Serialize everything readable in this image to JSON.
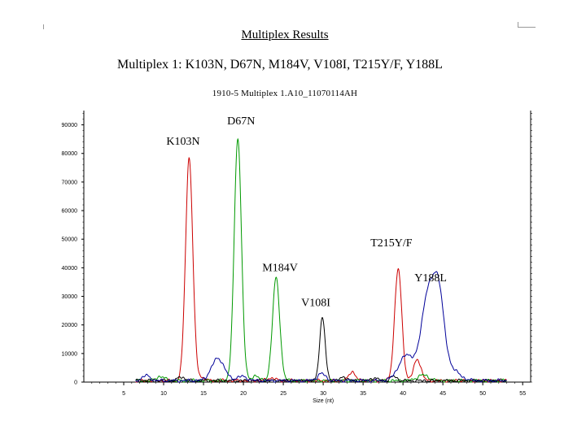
{
  "header": {
    "title": "Multiplex Results",
    "subtitle": "Multiplex 1: K103N, D67N, M184V, V108I, T215Y/F, Y188L",
    "sample_name": "1910-5 Multiplex 1.A10_11070114AH"
  },
  "chart_data": {
    "type": "line",
    "xlabel": "Size (nt)",
    "ylabel": "",
    "xlim": [
      0,
      56
    ],
    "ylim": [
      0,
      95000
    ],
    "x_ticks": [
      5,
      10,
      15,
      20,
      25,
      30,
      35,
      40,
      45,
      50,
      55
    ],
    "y_ticks": [
      0,
      10000,
      20000,
      30000,
      40000,
      50000,
      60000,
      70000,
      80000,
      90000
    ],
    "grid": false,
    "peak_labels": [
      {
        "text": "K103N",
        "x": 13.2
      },
      {
        "text": "D67N",
        "x": 19.6
      },
      {
        "text": "M184V",
        "x": 24.0
      },
      {
        "text": "V108I",
        "x": 29.9
      },
      {
        "text": "T215Y/F",
        "x": 39.6
      },
      {
        "text": "Y188L",
        "x": 44.3
      }
    ],
    "series": [
      {
        "color": "#cc0000",
        "peaks": [
          {
            "x": 13.2,
            "h": 78000,
            "w": 0.45
          },
          {
            "x": 14.6,
            "h": 1200,
            "w": 0.5
          },
          {
            "x": 23.5,
            "h": 900,
            "w": 0.5
          },
          {
            "x": 33.6,
            "h": 3200,
            "w": 0.4
          },
          {
            "x": 39.4,
            "h": 39000,
            "w": 0.45
          },
          {
            "x": 41.8,
            "h": 7500,
            "w": 0.45
          }
        ]
      },
      {
        "color": "#009900",
        "peaks": [
          {
            "x": 9.6,
            "h": 1500,
            "w": 0.5
          },
          {
            "x": 19.3,
            "h": 85000,
            "w": 0.45
          },
          {
            "x": 24.1,
            "h": 36000,
            "w": 0.45
          },
          {
            "x": 21.5,
            "h": 1800,
            "w": 0.4
          },
          {
            "x": 42.5,
            "h": 2000,
            "w": 0.7
          }
        ]
      },
      {
        "color": "#000000",
        "peaks": [
          {
            "x": 12.2,
            "h": 1400,
            "w": 0.4
          },
          {
            "x": 29.9,
            "h": 22000,
            "w": 0.35
          },
          {
            "x": 32.6,
            "h": 1300,
            "w": 0.4
          },
          {
            "x": 36.4,
            "h": 1000,
            "w": 0.4
          },
          {
            "x": 38.8,
            "h": 1500,
            "w": 0.4
          }
        ]
      },
      {
        "color": "#000099",
        "peaks": [
          {
            "x": 7.8,
            "h": 1800,
            "w": 0.5
          },
          {
            "x": 16.8,
            "h": 7800,
            "w": 0.8
          },
          {
            "x": 19.8,
            "h": 1500,
            "w": 0.6
          },
          {
            "x": 29.8,
            "h": 2500,
            "w": 0.5
          },
          {
            "x": 40.5,
            "h": 9000,
            "w": 1.0
          },
          {
            "x": 43.0,
            "h": 27000,
            "w": 0.75
          },
          {
            "x": 44.4,
            "h": 31000,
            "w": 0.7
          },
          {
            "x": 46.0,
            "h": 4000,
            "w": 1.0
          }
        ]
      }
    ]
  }
}
